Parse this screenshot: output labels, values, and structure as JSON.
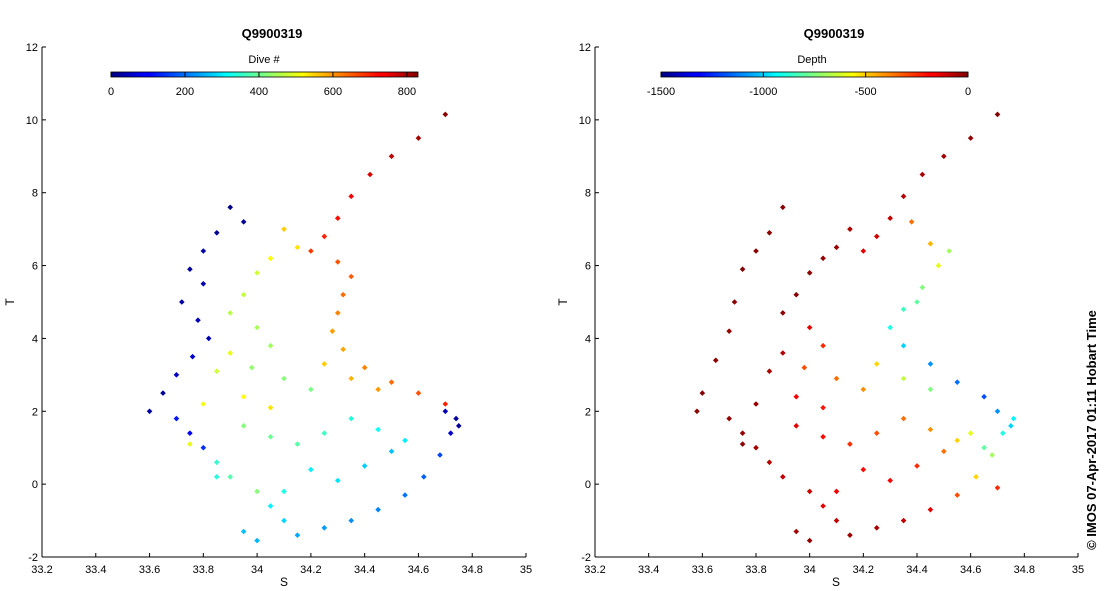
{
  "chart_data": [
    {
      "type": "scatter",
      "title": "Q9900319",
      "xlabel": "S",
      "ylabel": "T",
      "xlim": [
        33.2,
        35
      ],
      "ylim": [
        -2,
        12
      ],
      "xticks": [
        "33.2",
        "33.4",
        "33.6",
        "33.8",
        "34",
        "34.2",
        "34.4",
        "34.6",
        "34.8",
        "35"
      ],
      "yticks": [
        "-2",
        "0",
        "2",
        "4",
        "6",
        "8",
        "10",
        "12"
      ],
      "colorbar": {
        "label": "Dive #",
        "range": [
          0,
          830
        ],
        "ticks": [
          "0",
          "200",
          "400",
          "600",
          "800"
        ],
        "colormap": "jet"
      },
      "series": [
        {
          "values_from": "dive",
          "points": [
            [
              34.7,
              10.15,
              820
            ],
            [
              34.6,
              9.5,
              800
            ],
            [
              34.5,
              9.0,
              780
            ],
            [
              34.42,
              8.5,
              760
            ],
            [
              34.35,
              7.9,
              740
            ],
            [
              34.3,
              7.3,
              720
            ],
            [
              34.25,
              6.8,
              700
            ],
            [
              34.2,
              6.4,
              680
            ],
            [
              34.3,
              6.1,
              660
            ],
            [
              34.35,
              5.7,
              650
            ],
            [
              34.32,
              5.2,
              640
            ],
            [
              34.3,
              4.7,
              620
            ],
            [
              34.28,
              4.2,
              600
            ],
            [
              34.32,
              3.7,
              590
            ],
            [
              34.4,
              3.2,
              620
            ],
            [
              34.5,
              2.8,
              640
            ],
            [
              34.6,
              2.5,
              660
            ],
            [
              34.7,
              2.2,
              700
            ],
            [
              34.1,
              7.0,
              560
            ],
            [
              34.15,
              6.5,
              540
            ],
            [
              34.05,
              6.2,
              520
            ],
            [
              34.0,
              5.8,
              480
            ],
            [
              33.95,
              5.2,
              470
            ],
            [
              33.9,
              4.7,
              460
            ],
            [
              34.0,
              4.3,
              450
            ],
            [
              34.05,
              3.8,
              440
            ],
            [
              33.98,
              3.2,
              430
            ],
            [
              34.1,
              2.9,
              420
            ],
            [
              34.2,
              2.6,
              410
            ],
            [
              33.9,
              7.6,
              10
            ],
            [
              33.95,
              7.2,
              20
            ],
            [
              33.85,
              6.9,
              15
            ],
            [
              33.8,
              6.4,
              30
            ],
            [
              33.75,
              5.9,
              25
            ],
            [
              33.8,
              5.5,
              40
            ],
            [
              33.72,
              5.0,
              35
            ],
            [
              33.78,
              4.5,
              50
            ],
            [
              33.82,
              4.0,
              45
            ],
            [
              33.76,
              3.5,
              60
            ],
            [
              33.7,
              3.0,
              55
            ],
            [
              33.65,
              2.5,
              20
            ],
            [
              33.6,
              2.0,
              30
            ],
            [
              33.7,
              1.8,
              120
            ],
            [
              33.75,
              1.4,
              100
            ],
            [
              33.8,
              1.0,
              140
            ],
            [
              33.85,
              0.6,
              350
            ],
            [
              33.9,
              0.2,
              380
            ],
            [
              34.0,
              -0.2,
              420
            ],
            [
              34.05,
              -0.6,
              300
            ],
            [
              34.1,
              -1.0,
              280
            ],
            [
              33.95,
              -1.3,
              260
            ],
            [
              34.0,
              -1.55,
              250
            ],
            [
              34.15,
              -1.4,
              240
            ],
            [
              34.25,
              -1.2,
              230
            ],
            [
              34.35,
              -1.0,
              220
            ],
            [
              34.45,
              -0.7,
              210
            ],
            [
              34.55,
              -0.3,
              200
            ],
            [
              34.62,
              0.2,
              180
            ],
            [
              34.68,
              0.8,
              160
            ],
            [
              34.72,
              1.4,
              60
            ],
            [
              34.74,
              1.8,
              30
            ],
            [
              34.75,
              1.6,
              20
            ],
            [
              34.7,
              2.0,
              40
            ],
            [
              34.55,
              1.2,
              300
            ],
            [
              34.45,
              1.5,
              320
            ],
            [
              34.35,
              1.8,
              340
            ],
            [
              34.25,
              1.4,
              360
            ],
            [
              34.15,
              1.1,
              380
            ],
            [
              34.05,
              1.3,
              400
            ],
            [
              33.95,
              1.6,
              420
            ],
            [
              34.2,
              0.4,
              300
            ],
            [
              34.3,
              0.1,
              290
            ],
            [
              34.4,
              0.5,
              270
            ],
            [
              34.5,
              0.9,
              260
            ],
            [
              34.1,
              -0.2,
              330
            ],
            [
              33.9,
              3.6,
              500
            ],
            [
              33.85,
              3.1,
              480
            ],
            [
              33.95,
              2.4,
              520
            ],
            [
              34.05,
              2.1,
              540
            ],
            [
              34.25,
              3.3,
              560
            ],
            [
              34.35,
              2.9,
              580
            ],
            [
              34.45,
              2.6,
              600
            ],
            [
              33.8,
              2.2,
              510
            ],
            [
              33.75,
              1.1,
              500
            ],
            [
              33.85,
              0.2,
              340
            ]
          ]
        }
      ]
    },
    {
      "type": "scatter",
      "title": "Q9900319",
      "xlabel": "S",
      "ylabel": "T",
      "xlim": [
        33.2,
        35
      ],
      "ylim": [
        -2,
        12
      ],
      "xticks": [
        "33.2",
        "33.4",
        "33.6",
        "33.8",
        "34",
        "34.2",
        "34.4",
        "34.6",
        "34.8",
        "35"
      ],
      "yticks": [
        "-2",
        "0",
        "2",
        "4",
        "6",
        "8",
        "10",
        "12"
      ],
      "colorbar": {
        "label": "Depth",
        "range": [
          -1500,
          0
        ],
        "ticks": [
          "-1500",
          "-1000",
          "-500",
          "0"
        ],
        "colormap": "jet"
      },
      "series": [
        {
          "values_from": "depth",
          "points": [
            [
              34.7,
              10.15,
              -10
            ],
            [
              34.6,
              9.5,
              -30
            ],
            [
              34.5,
              9.0,
              -50
            ],
            [
              34.42,
              8.5,
              -60
            ],
            [
              34.35,
              7.9,
              -80
            ],
            [
              34.3,
              7.3,
              -100
            ],
            [
              34.25,
              6.8,
              -120
            ],
            [
              34.2,
              6.4,
              -140
            ],
            [
              34.38,
              7.2,
              -350
            ],
            [
              34.45,
              6.6,
              -450
            ],
            [
              34.48,
              6.0,
              -600
            ],
            [
              34.42,
              5.4,
              -750
            ],
            [
              34.35,
              4.8,
              -850
            ],
            [
              34.3,
              4.3,
              -900
            ],
            [
              34.35,
              3.8,
              -1000
            ],
            [
              34.45,
              3.3,
              -1100
            ],
            [
              34.55,
              2.8,
              -1150
            ],
            [
              34.65,
              2.4,
              -1200
            ],
            [
              34.52,
              6.4,
              -700
            ],
            [
              34.4,
              5.0,
              -800
            ],
            [
              34.15,
              7.0,
              -60
            ],
            [
              34.1,
              6.5,
              -40
            ],
            [
              34.05,
              6.2,
              -30
            ],
            [
              34.0,
              5.8,
              -20
            ],
            [
              33.95,
              5.2,
              -10
            ],
            [
              33.9,
              4.7,
              -20
            ],
            [
              34.0,
              4.3,
              -150
            ],
            [
              34.05,
              3.8,
              -250
            ],
            [
              33.98,
              3.2,
              -300
            ],
            [
              34.1,
              2.9,
              -350
            ],
            [
              34.2,
              2.6,
              -400
            ],
            [
              33.9,
              7.6,
              -10
            ],
            [
              33.85,
              6.9,
              -20
            ],
            [
              33.8,
              6.4,
              -15
            ],
            [
              33.75,
              5.9,
              -10
            ],
            [
              33.72,
              5.0,
              -20
            ],
            [
              33.7,
              4.2,
              -30
            ],
            [
              33.65,
              3.4,
              -20
            ],
            [
              33.6,
              2.5,
              -10
            ],
            [
              33.58,
              2.0,
              -20
            ],
            [
              33.7,
              1.8,
              -30
            ],
            [
              33.75,
              1.4,
              -40
            ],
            [
              33.8,
              1.0,
              -60
            ],
            [
              33.85,
              0.6,
              -80
            ],
            [
              33.9,
              0.2,
              -100
            ],
            [
              34.0,
              -0.2,
              -120
            ],
            [
              34.05,
              -0.6,
              -150
            ],
            [
              34.1,
              -1.0,
              -100
            ],
            [
              33.95,
              -1.3,
              -60
            ],
            [
              34.0,
              -1.55,
              -30
            ],
            [
              34.15,
              -1.4,
              -40
            ],
            [
              34.25,
              -1.2,
              -60
            ],
            [
              34.35,
              -1.0,
              -90
            ],
            [
              34.45,
              -0.7,
              -150
            ],
            [
              34.55,
              -0.3,
              -300
            ],
            [
              34.62,
              0.2,
              -500
            ],
            [
              34.68,
              0.8,
              -700
            ],
            [
              34.72,
              1.4,
              -900
            ],
            [
              34.75,
              1.6,
              -1000
            ],
            [
              34.76,
              1.8,
              -950
            ],
            [
              34.7,
              2.0,
              -1100
            ],
            [
              34.55,
              1.2,
              -500
            ],
            [
              34.45,
              1.5,
              -400
            ],
            [
              34.35,
              1.8,
              -350
            ],
            [
              34.25,
              1.4,
              -300
            ],
            [
              34.15,
              1.1,
              -250
            ],
            [
              34.05,
              1.3,
              -200
            ],
            [
              33.95,
              1.6,
              -150
            ],
            [
              34.2,
              0.4,
              -200
            ],
            [
              34.3,
              0.1,
              -180
            ],
            [
              34.4,
              0.5,
              -250
            ],
            [
              34.5,
              0.9,
              -350
            ],
            [
              34.1,
              -0.2,
              -170
            ],
            [
              34.6,
              1.4,
              -600
            ],
            [
              34.65,
              1.0,
              -800
            ],
            [
              33.9,
              3.6,
              -80
            ],
            [
              33.85,
              3.1,
              -60
            ],
            [
              33.95,
              2.4,
              -180
            ],
            [
              34.05,
              2.1,
              -220
            ],
            [
              34.25,
              3.3,
              -500
            ],
            [
              34.35,
              2.9,
              -650
            ],
            [
              34.45,
              2.6,
              -750
            ],
            [
              33.8,
              2.2,
              -40
            ],
            [
              33.75,
              1.1,
              -30
            ],
            [
              34.7,
              -0.1,
              -250
            ]
          ]
        }
      ]
    }
  ],
  "credit": "© IMOS 07-Apr-2017 01:11 Hobart Time"
}
